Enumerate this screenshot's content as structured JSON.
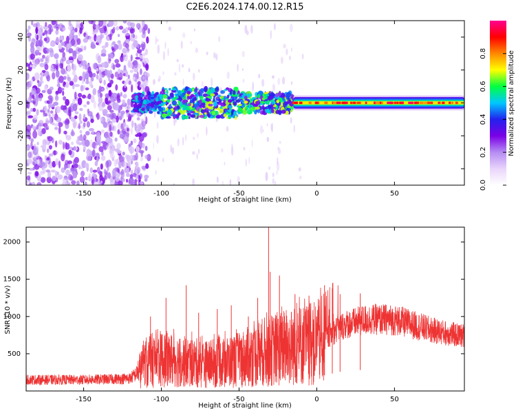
{
  "title": "C2E6.2024.174.00.12.R15",
  "colors": {
    "snr_line": "#ee3333",
    "colormap": [
      "#ffffff",
      "#e9d5fb",
      "#b58cf2",
      "#7a00e6",
      "#2222ee",
      "#00c8ff",
      "#00ff40",
      "#ffff00",
      "#ff8800",
      "#ff0000",
      "#ff0090"
    ]
  },
  "chart_data": [
    {
      "type": "heatmap",
      "name": "spectrogram",
      "xlabel": "Height of straight line (km)",
      "ylabel": "Frequency (Hz)",
      "xlim": [
        -187,
        95
      ],
      "ylim": [
        -50,
        50
      ],
      "x_ticks": [
        -150,
        -100,
        -50,
        0,
        50
      ],
      "y_ticks": [
        -40,
        -20,
        0,
        20,
        40
      ],
      "colorbar": {
        "label": "Normalized spectral amplitude",
        "range": [
          0,
          1
        ],
        "ticks": [
          0.0,
          0.2,
          0.4,
          0.6,
          0.8
        ]
      },
      "description_values": {
        "noise_region_km": [
          -187,
          -118
        ],
        "main_band_start_km": -118,
        "main_band_center_hz": 0,
        "main_band_halfwidth_hz": 4,
        "peak_amplitude_region_km": [
          -20,
          95
        ]
      }
    },
    {
      "type": "line",
      "name": "snr",
      "xlabel": "Height of straight line (km)",
      "ylabel": "SNR (10 * v/v)",
      "xlim": [
        -187,
        95
      ],
      "ylim": [
        0,
        2200
      ],
      "x_ticks": [
        -150,
        -100,
        -50,
        0,
        50
      ],
      "y_ticks": [
        500,
        1000,
        1500,
        2000
      ],
      "x": [
        -187,
        -170,
        -150,
        -130,
        -120,
        -115,
        -110,
        -105,
        -100,
        -95,
        -90,
        -85,
        -80,
        -75,
        -70,
        -65,
        -60,
        -55,
        -50,
        -45,
        -40,
        -35,
        -30,
        -25,
        -20,
        -15,
        -10,
        -5,
        0,
        5,
        10,
        15,
        20,
        25,
        30,
        35,
        40,
        45,
        50,
        55,
        60,
        65,
        70,
        75,
        80,
        85,
        90,
        95
      ],
      "y_base": [
        150,
        150,
        150,
        160,
        170,
        250,
        380,
        420,
        430,
        420,
        410,
        390,
        380,
        370,
        360,
        370,
        380,
        400,
        420,
        450,
        480,
        520,
        540,
        560,
        580,
        600,
        620,
        620,
        640,
        700,
        780,
        860,
        900,
        920,
        950,
        960,
        960,
        960,
        950,
        930,
        900,
        870,
        840,
        810,
        790,
        770,
        750,
        740
      ],
      "spikes": [
        {
          "x": -107,
          "y": 1000
        },
        {
          "x": -97,
          "y": 1250
        },
        {
          "x": -84,
          "y": 1420
        },
        {
          "x": -76,
          "y": 1050
        },
        {
          "x": -64,
          "y": 1100
        },
        {
          "x": -55,
          "y": 1150
        },
        {
          "x": -44,
          "y": 1000
        },
        {
          "x": -38,
          "y": 1250
        },
        {
          "x": -31,
          "y": 2200
        },
        {
          "x": -30,
          "y": 1600
        },
        {
          "x": -24,
          "y": 1550
        },
        {
          "x": -21,
          "y": 1050
        },
        {
          "x": -14,
          "y": 1300
        },
        {
          "x": -5,
          "y": 1280
        },
        {
          "x": 5,
          "y": 1420
        },
        {
          "x": 10,
          "y": 1380
        },
        {
          "x": 15,
          "y": 1300
        },
        {
          "x": 28,
          "y": 1310
        }
      ]
    }
  ]
}
